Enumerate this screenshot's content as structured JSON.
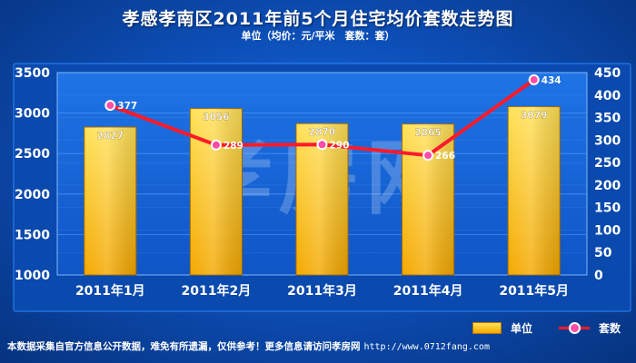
{
  "title": "孝感孝南区2011年前5个月住宅均价套数走势图",
  "subtitle": "单位（均价：元/平米　套数：套）",
  "watermark": "孝房网",
  "footer": {
    "text": "本数据采集自官方信息公开数据，难免有所遗漏，仅供参考！更多信息请访问孝房网",
    "url": "http://www.0712fang.com"
  },
  "legend": {
    "bar_label": "单位",
    "line_label": "套数"
  },
  "colors": {
    "bar_top": "#ffe25a",
    "bar_bottom": "#f4a800",
    "line": "#ff1a2a",
    "marker": "#ff4da6",
    "plot_bg": "#1565d8",
    "grid": "#5fa0ff"
  },
  "chart_data": {
    "type": "bar",
    "categories": [
      "2011年1月",
      "2011年2月",
      "2011年3月",
      "2011年4月",
      "2011年5月"
    ],
    "series": [
      {
        "name": "单位",
        "type": "bar",
        "axis": "left",
        "values": [
          2827,
          3056,
          2870,
          2865,
          3079
        ]
      },
      {
        "name": "套数",
        "type": "line",
        "axis": "right",
        "values": [
          377,
          289,
          290,
          266,
          434
        ]
      }
    ],
    "y_left": {
      "range": [
        1000,
        3500
      ],
      "ticks": [
        "1000",
        "1500",
        "2000",
        "2500",
        "3000",
        "3500"
      ]
    },
    "y_right": {
      "range": [
        0,
        450
      ],
      "ticks": [
        "0",
        "50",
        "100",
        "150",
        "200",
        "250",
        "300",
        "350",
        "400",
        "450"
      ]
    },
    "grid": true,
    "legend_position": "bottom-right"
  }
}
